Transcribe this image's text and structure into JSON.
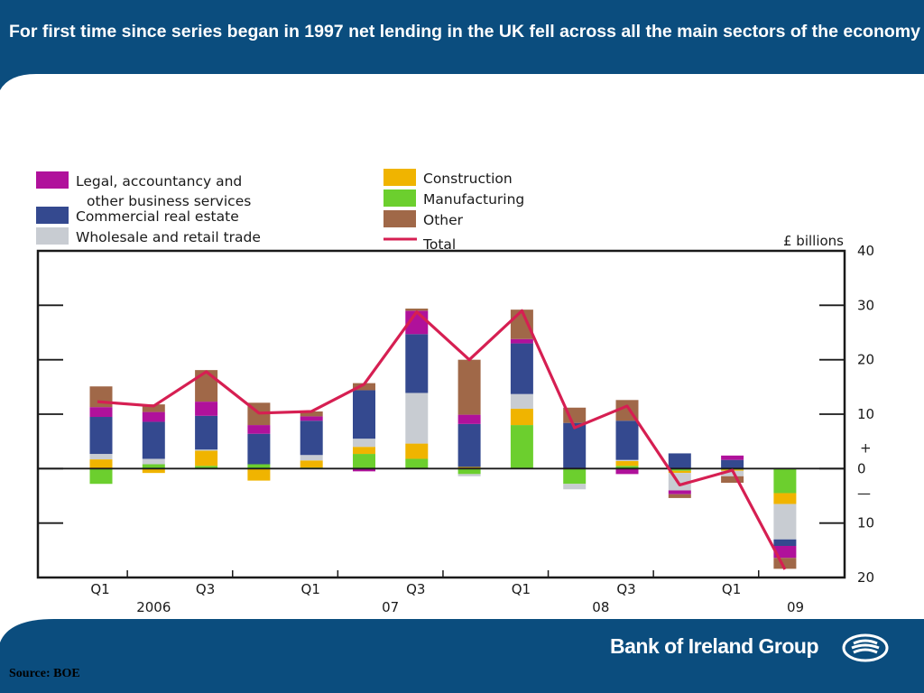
{
  "header": {
    "title": "For first time since series began in 1997 net lending in the UK fell across all the main sectors of the economy"
  },
  "footer": {
    "brand": "Bank of Ireland Group",
    "source": "Source: BOE"
  },
  "colors": {
    "header_bg": "#0b4d7e",
    "footer_bg": "#0b4d7e",
    "total_line": "#d61f52"
  },
  "chart_data": {
    "type": "bar",
    "stacked": true,
    "unit_label": "£ billions",
    "ylim": [
      -20,
      40
    ],
    "y_ticks": [
      {
        "value": 40,
        "label": "40"
      },
      {
        "value": 30,
        "label": "30"
      },
      {
        "value": 20,
        "label": "20"
      },
      {
        "value": 10,
        "label": "10"
      },
      {
        "value": 0,
        "label": "0"
      },
      {
        "value": -10,
        "label": "10"
      },
      {
        "value": -20,
        "label": "20"
      }
    ],
    "sign_labels": {
      "plus": "+",
      "minus": "—"
    },
    "categories": [
      "2006 Q1",
      "2006 Q2",
      "2006 Q3",
      "2006 Q4",
      "2007 Q1",
      "2007 Q2",
      "2007 Q3",
      "2007 Q4",
      "2008 Q1",
      "2008 Q2",
      "2008 Q3",
      "2008 Q4",
      "2009 Q1",
      "2009 Q2"
    ],
    "x_tick_labels": [
      {
        "index": 0,
        "label": "Q1"
      },
      {
        "index": 2,
        "label": "Q3"
      },
      {
        "index": 4,
        "label": "Q1"
      },
      {
        "index": 6,
        "label": "Q3"
      },
      {
        "index": 8,
        "label": "Q1"
      },
      {
        "index": 10,
        "label": "Q3"
      },
      {
        "index": 12,
        "label": "Q1"
      }
    ],
    "year_labels": [
      {
        "index": 1,
        "label": "2006"
      },
      {
        "index": 5.5,
        "label": "07"
      },
      {
        "index": 9.5,
        "label": "08"
      },
      {
        "index": 13.2,
        "label": "09"
      }
    ],
    "series": [
      {
        "name": "Manufacturing",
        "color": "#6ccf2e",
        "values": [
          -2.8,
          0.8,
          0.5,
          0.8,
          0.2,
          2.7,
          1.8,
          -1.0,
          8.0,
          -2.8,
          0.5,
          -0.4,
          -0.2,
          -4.5
        ]
      },
      {
        "name": "Construction",
        "color": "#f0b400",
        "values": [
          1.7,
          -0.8,
          2.8,
          -2.2,
          1.3,
          1.3,
          2.8,
          0.3,
          3.0,
          0.0,
          0.9,
          -0.4,
          -0.2,
          -2.0
        ]
      },
      {
        "name": "Wholesale and retail trade",
        "color": "#c8ccd2",
        "values": [
          1.0,
          1.0,
          0.2,
          0.0,
          1.0,
          1.5,
          9.3,
          -0.4,
          2.7,
          -1.0,
          0.2,
          -3.2,
          -1.0,
          -6.5
        ]
      },
      {
        "name": "Commercial real estate",
        "color": "#34498f",
        "values": [
          6.8,
          6.8,
          6.2,
          5.6,
          6.3,
          8.9,
          10.8,
          7.9,
          9.3,
          8.4,
          7.2,
          2.8,
          1.6,
          -1.2
        ]
      },
      {
        "name": "Legal, accountancy and other business services",
        "color": "#b0119b",
        "values": [
          1.8,
          1.8,
          2.6,
          1.6,
          0.8,
          -0.5,
          4.3,
          1.7,
          0.8,
          0.0,
          -1.0,
          -0.7,
          0.8,
          -2.2
        ]
      },
      {
        "name": "Other",
        "color": "#a06848",
        "values": [
          3.8,
          1.4,
          5.8,
          4.1,
          0.9,
          1.3,
          0.4,
          10.1,
          5.4,
          2.8,
          3.8,
          -0.7,
          -1.2,
          -2.0
        ]
      }
    ],
    "total": {
      "name": "Total",
      "color": "#d61f52",
      "values": [
        12.3,
        11.5,
        17.8,
        10.2,
        10.5,
        15.5,
        28.8,
        20.0,
        29.0,
        7.5,
        11.5,
        -3.0,
        -0.3,
        -18.5
      ]
    },
    "legend": [
      {
        "label_lines": [
          "Legal, accountancy and",
          "other business services"
        ],
        "color": "#b0119b",
        "kind": "box"
      },
      {
        "label_lines": [
          "Commercial real estate"
        ],
        "color": "#34498f",
        "kind": "box"
      },
      {
        "label_lines": [
          "Wholesale and retail trade"
        ],
        "color": "#c8ccd2",
        "kind": "box"
      },
      {
        "label_lines": [
          "Construction"
        ],
        "color": "#f0b400",
        "kind": "box"
      },
      {
        "label_lines": [
          "Manufacturing"
        ],
        "color": "#6ccf2e",
        "kind": "box"
      },
      {
        "label_lines": [
          "Other"
        ],
        "color": "#a06848",
        "kind": "box"
      },
      {
        "label_lines": [
          "Total"
        ],
        "color": "#d61f52",
        "kind": "line"
      }
    ],
    "legend_placement": "top",
    "grid": false
  }
}
